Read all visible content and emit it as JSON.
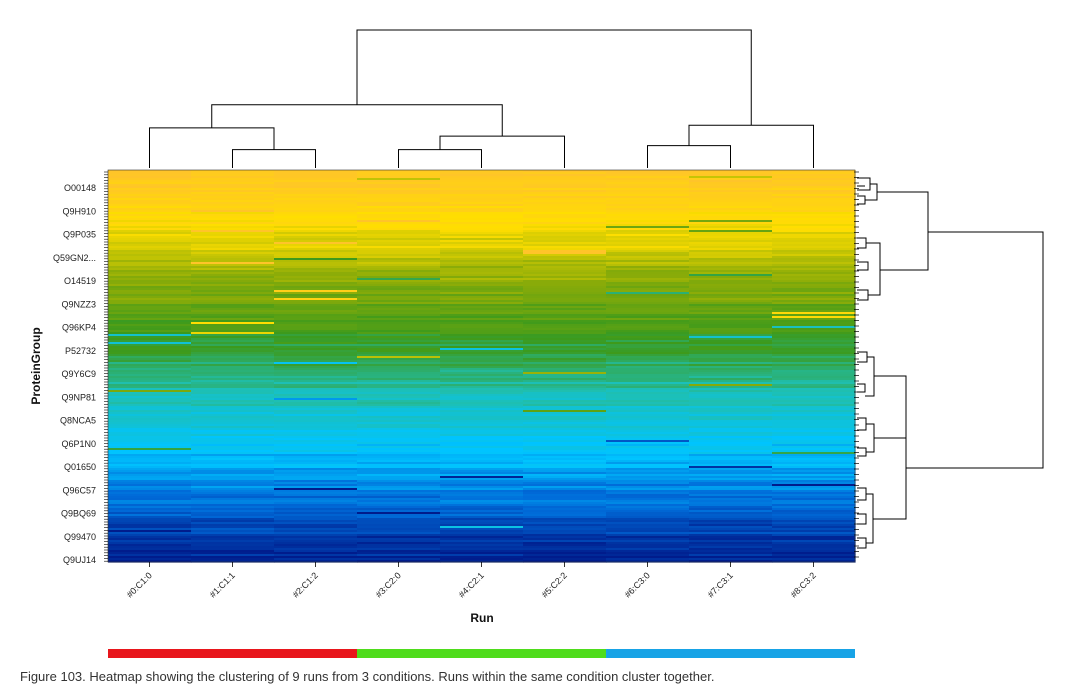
{
  "chart_data": {
    "type": "heatmap",
    "xlabel": "Run",
    "ylabel": "ProteinGroup",
    "runs": [
      "#0:C1:0",
      "#1:C1:1",
      "#2:C1:2",
      "#3:C2:0",
      "#4:C2:1",
      "#5:C2:2",
      "#6:C3:0",
      "#7:C3:1",
      "#8:C3:2"
    ],
    "protein_labels": [
      "O00148",
      "Q9H910",
      "Q9P035",
      "Q59GN2...",
      "O14519",
      "Q9NZZ3",
      "Q96KP4",
      "P52732",
      "Q9Y6C9",
      "Q9NP81",
      "Q8NCA5",
      "Q6P1N0",
      "Q01650",
      "Q96C57",
      "Q9BQ69",
      "Q99470",
      "Q9UJ14"
    ],
    "conditions": [
      {
        "runs": [
          0,
          1,
          2
        ],
        "color": "#e8161c"
      },
      {
        "runs": [
          3,
          4,
          5
        ],
        "color": "#4fdc1c"
      },
      {
        "runs": [
          6,
          7,
          8
        ],
        "color": "#17a3e6"
      }
    ],
    "color_scale": [
      "#ffc42a",
      "#ffde00",
      "#8cac08",
      "#3c9a1c",
      "#1fbfb0",
      "#00c4ff",
      "#006ad8",
      "#001c8c"
    ],
    "column_dendrogram": [
      {
        "a": 1,
        "b": 2,
        "height": 0.12
      },
      {
        "a": 0,
        "b": 9,
        "height": 0.28
      },
      {
        "a": 3,
        "b": 4,
        "height": 0.12
      },
      {
        "a": 11,
        "b": 5,
        "height": 0.22
      },
      {
        "a": 10,
        "b": 12,
        "height": 0.45
      },
      {
        "a": 6,
        "b": 7,
        "height": 0.15
      },
      {
        "a": 14,
        "b": 8,
        "height": 0.3
      },
      {
        "a": 13,
        "b": 15,
        "height": 1.0
      }
    ]
  },
  "caption": "Figure 103. Heatmap showing the clustering of 9 runs from 3 conditions. Runs within the same condition cluster together."
}
